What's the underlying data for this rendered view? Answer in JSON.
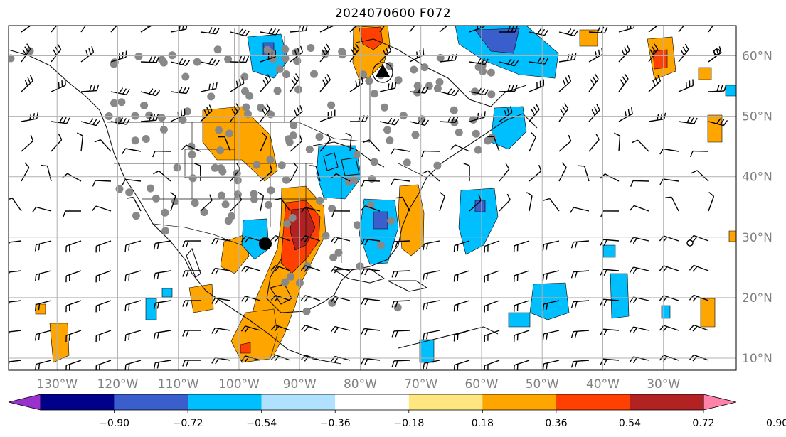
{
  "title": "2024070600 F072",
  "longitude_labels": [
    "130°W",
    "120°W",
    "110°W",
    "100°W",
    "90°W",
    "80°W",
    "70°W",
    "60°W",
    "50°W",
    "40°W",
    "30°W"
  ],
  "latitude_labels": [
    "60°N",
    "50°N",
    "40°N",
    "30°N",
    "20°N",
    "10°N"
  ],
  "colorbar": {
    "tick_labels": [
      "−0.90",
      "−0.72",
      "−0.54",
      "−0.36",
      "−0.18",
      "0.18",
      "0.36",
      "0.54",
      "0.72",
      "0.90"
    ],
    "colors": [
      "#9932cc",
      "#00008b",
      "#3a5fcd",
      "#00bfff",
      "#b0e2ff",
      "#ffffff",
      "#ffe680",
      "#ffa500",
      "#ff4000",
      "#b22222",
      "#ff82ab"
    ]
  },
  "map": {
    "extent": {
      "lon_min": -138,
      "lon_max": -18,
      "lat_min": 8,
      "lat_max": 65
    },
    "field_colors": {
      "pos1": "#ffa500",
      "pos2": "#ff4000",
      "pos3": "#b22222",
      "neg1": "#00bfff",
      "neg2": "#3a5fcd"
    },
    "station_color": "#888888",
    "cyclone_marker": "black-dot",
    "wind_barbs": "gridded-wind-barbs"
  }
}
